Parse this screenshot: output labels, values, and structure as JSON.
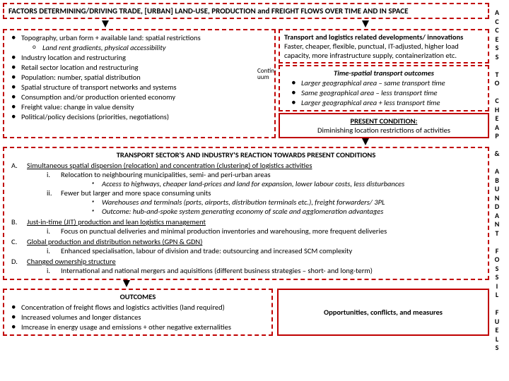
{
  "header": "FACTORS DETERMINING/DRIVING TRADE, [URBAN] LAND-USE, PRODUCTION and FREIGHT FLOWS OVER TIME AND IN SPACE",
  "side_letters": [
    "A",
    "C",
    "C",
    "E",
    "S",
    "S",
    "",
    "T",
    "O",
    "",
    "C",
    "H",
    "E",
    "A",
    "P",
    "",
    "&",
    "",
    "A",
    "B",
    "U",
    "N",
    "D",
    "A",
    "N",
    "T",
    "",
    "F",
    "O",
    "S",
    "S",
    "I",
    "L",
    "",
    "F",
    "U",
    "E",
    "L",
    "S"
  ],
  "factors": {
    "f1": "Topography, urban form + available land: spatial restrictions",
    "f1a": "Land rent gradients, physical accessibility",
    "f2": "Industry location and restructuring",
    "f3": "Retail sector location and restructuring",
    "f4": "Population: number, spatial distribution",
    "f5": "Spatial structure of transport networks and systems",
    "f6": "Consumption and/or production oriented economy",
    "f7": "Freight value:  change in value density",
    "f8": "Political/policy decisions (priorities, negotiations)"
  },
  "contin": "Contin-\nuum",
  "dev": {
    "title": "Transport and logistics related developments/ innovations",
    "body": "Faster, cheaper, flexible, punctual, IT-adjusted, higher load capacity, more infrastructure supply, containerization etc."
  },
  "outcomes_time": {
    "title": "Time-spatial transport outcomes",
    "o1": "Larger geographical area – same transport time",
    "o2": "Same geographical area – less transport time",
    "o3": "Larger geographical area + less transport time"
  },
  "present": {
    "title": "PRESENT CONDITION:",
    "body": "Diminishing location restrictions of activities"
  },
  "reaction": {
    "title": "TRANSPORT SECTOR'S AND INDUSTRY'S REACTION TOWARDS PRESENT CONDITIONS",
    "A": "Simultaneous spatial dispersion (relocation) and concentration (clustering) of logistics activities",
    "A_i": "Relocation to neighbouring municipalities, semi- and peri-urban areas",
    "A_i_a": "Access to highways, cheaper land-prices and land for expansion, lower labour costs, less disturbances",
    "A_ii": "Fewer but larger and more space consuming units",
    "A_ii_a": "Warehouses and terminals (ports, airports, distribution terminals etc.), freight forwarders/ 3PL",
    "A_ii_b": "Outcome: hub-and-spoke system generating economy of scale and agglomeration advantages",
    "B": "Just-in-time (JIT) production and lean logistics management",
    "B_i": "Focus on punctual deliveries and minimal production inventories and warehousing, more frequent deliveries",
    "C": "Global production and distribution networks (GPN & GDN)",
    "C_i": "Enhanced specialisation, labour of division and trade: outsourcing and increased SCM complexity",
    "D": "Changed ownership structure",
    "D_i": "International and national mergers and aquisitions (different business strategies – short- and long-term)"
  },
  "outcomes": {
    "title": "OUTCOMES",
    "o1": "Concentration of freight flows and logistics activities (land required)",
    "o2": "Increased volumes and longer distances",
    "o3": "Imcrease in energy usage and emissions + other negative externalities"
  },
  "ocm": "Opportunities, conflicts, and measures",
  "colors": {
    "border": "#c00000"
  }
}
